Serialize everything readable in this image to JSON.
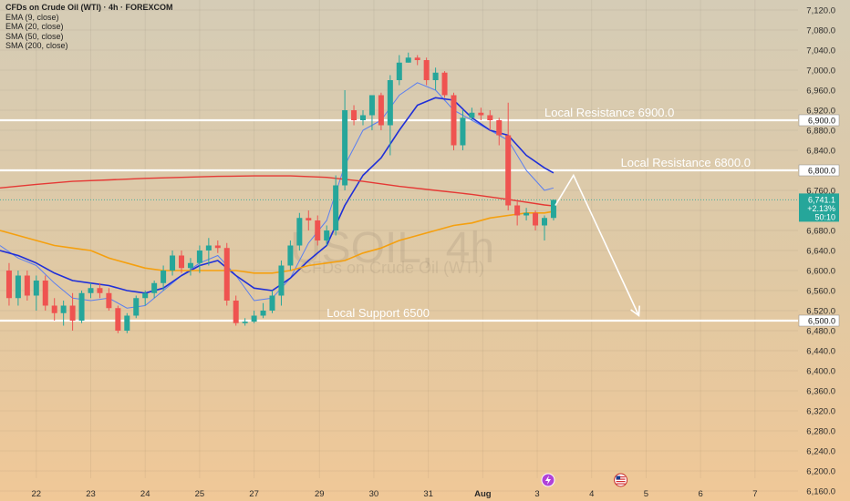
{
  "header": {
    "title": "CFDs on Crude Oil (WTI) · 4h · FOREXCOM",
    "indicators": [
      "EMA (9, close)",
      "EMA (20, close)",
      "SMA (50, close)",
      "SMA (200, close)"
    ]
  },
  "watermark": {
    "symbol": "USOIL, 4h",
    "name": "CFDs on Crude Oil (WTI)"
  },
  "price_tag": {
    "price": "6,741.1",
    "change": "+2.13%",
    "countdown": "50:10"
  },
  "colors": {
    "up": "#26a69a",
    "down": "#ef5350",
    "ema9": "#5b7ff0",
    "ema20": "#1f2fd8",
    "sma50": "#f5a00f",
    "sma200": "#e53935",
    "level": "#ffffff",
    "tag": "#26a69a"
  },
  "chart_data": {
    "type": "candlestick",
    "title": "CFDs on Crude Oil (WTI) · 4h · FOREXCOM",
    "ylim": [
      6140,
      7140
    ],
    "xlim": [
      0,
      43.2
    ],
    "y_ticks": [
      6160,
      6200,
      6240,
      6280,
      6320,
      6360,
      6400,
      6440,
      6480,
      6520,
      6560,
      6600,
      6640,
      6680,
      6720,
      6760,
      6800,
      6840,
      6880,
      6920,
      6960,
      7000,
      7040,
      7080,
      7120
    ],
    "y_tick_labels": [
      "6,160.0",
      "6,200.0",
      "6,240.0",
      "6,280.0",
      "6,320.0",
      "6,360.0",
      "6,400.0",
      "6,440.0",
      "6,480.0",
      "6,520.0",
      "6,560.0",
      "6,600.0",
      "6,640.0",
      "6,680.0",
      "6,720.0",
      "6,760.0",
      "6,800.0",
      "6,840.0",
      "6,880.0",
      "6,920.0",
      "6,960.0",
      "7,000.0",
      "7,040.0",
      "7,080.0",
      "7,120.0"
    ],
    "x_ticks": [
      {
        "label": "22",
        "x": 2
      },
      {
        "label": "23",
        "x": 5
      },
      {
        "label": "24",
        "x": 8
      },
      {
        "label": "25",
        "x": 11
      },
      {
        "label": "27",
        "x": 14
      },
      {
        "label": "29",
        "x": 17.6
      },
      {
        "label": "30",
        "x": 20.6
      },
      {
        "label": "31",
        "x": 23.6
      },
      {
        "label": "Aug",
        "x": 26.6
      },
      {
        "label": "3",
        "x": 29.6
      },
      {
        "label": "4",
        "x": 32.6
      },
      {
        "label": "5",
        "x": 35.6
      },
      {
        "label": "6",
        "x": 38.6
      },
      {
        "label": "7",
        "x": 41.6
      }
    ],
    "candles": [
      {
        "x": 0.5,
        "o": 6600,
        "h": 6615,
        "l": 6530,
        "c": 6545
      },
      {
        "x": 1.0,
        "o": 6545,
        "h": 6600,
        "l": 6530,
        "c": 6590
      },
      {
        "x": 1.5,
        "o": 6590,
        "h": 6600,
        "l": 6540,
        "c": 6550
      },
      {
        "x": 2.0,
        "o": 6550,
        "h": 6590,
        "l": 6520,
        "c": 6580
      },
      {
        "x": 2.5,
        "o": 6580,
        "h": 6590,
        "l": 6520,
        "c": 6530
      },
      {
        "x": 3.0,
        "o": 6530,
        "h": 6545,
        "l": 6500,
        "c": 6515
      },
      {
        "x": 3.5,
        "o": 6515,
        "h": 6540,
        "l": 6490,
        "c": 6530
      },
      {
        "x": 4.0,
        "o": 6530,
        "h": 6555,
        "l": 6480,
        "c": 6500
      },
      {
        "x": 4.5,
        "o": 6500,
        "h": 6560,
        "l": 6495,
        "c": 6555
      },
      {
        "x": 5.0,
        "o": 6555,
        "h": 6575,
        "l": 6545,
        "c": 6565
      },
      {
        "x": 5.5,
        "o": 6565,
        "h": 6575,
        "l": 6545,
        "c": 6555
      },
      {
        "x": 6.0,
        "o": 6555,
        "h": 6565,
        "l": 6520,
        "c": 6525
      },
      {
        "x": 6.5,
        "o": 6525,
        "h": 6530,
        "l": 6475,
        "c": 6480
      },
      {
        "x": 7.0,
        "o": 6480,
        "h": 6515,
        "l": 6475,
        "c": 6510
      },
      {
        "x": 7.5,
        "o": 6510,
        "h": 6550,
        "l": 6505,
        "c": 6545
      },
      {
        "x": 8.0,
        "o": 6545,
        "h": 6560,
        "l": 6530,
        "c": 6555
      },
      {
        "x": 8.5,
        "o": 6555,
        "h": 6580,
        "l": 6545,
        "c": 6575
      },
      {
        "x": 9.0,
        "o": 6575,
        "h": 6610,
        "l": 6560,
        "c": 6600
      },
      {
        "x": 9.5,
        "o": 6600,
        "h": 6640,
        "l": 6590,
        "c": 6630
      },
      {
        "x": 10.0,
        "o": 6630,
        "h": 6640,
        "l": 6595,
        "c": 6605
      },
      {
        "x": 10.5,
        "o": 6605,
        "h": 6625,
        "l": 6590,
        "c": 6615
      },
      {
        "x": 11.0,
        "o": 6615,
        "h": 6650,
        "l": 6595,
        "c": 6640
      },
      {
        "x": 11.5,
        "o": 6640,
        "h": 6665,
        "l": 6610,
        "c": 6650
      },
      {
        "x": 12.0,
        "o": 6650,
        "h": 6660,
        "l": 6635,
        "c": 6645
      },
      {
        "x": 12.5,
        "o": 6645,
        "h": 6655,
        "l": 6530,
        "c": 6540
      },
      {
        "x": 13.0,
        "o": 6540,
        "h": 6550,
        "l": 6490,
        "c": 6495
      },
      {
        "x": 13.5,
        "o": 6495,
        "h": 6505,
        "l": 6490,
        "c": 6498
      },
      {
        "x": 14.0,
        "o": 6498,
        "h": 6520,
        "l": 6495,
        "c": 6510
      },
      {
        "x": 14.5,
        "o": 6510,
        "h": 6535,
        "l": 6505,
        "c": 6520
      },
      {
        "x": 15.0,
        "o": 6520,
        "h": 6560,
        "l": 6515,
        "c": 6550
      },
      {
        "x": 15.5,
        "o": 6550,
        "h": 6620,
        "l": 6530,
        "c": 6610
      },
      {
        "x": 16.0,
        "o": 6610,
        "h": 6660,
        "l": 6600,
        "c": 6650
      },
      {
        "x": 16.5,
        "o": 6650,
        "h": 6715,
        "l": 6640,
        "c": 6705
      },
      {
        "x": 17.0,
        "o": 6705,
        "h": 6720,
        "l": 6680,
        "c": 6700
      },
      {
        "x": 17.5,
        "o": 6700,
        "h": 6710,
        "l": 6650,
        "c": 6660
      },
      {
        "x": 18.0,
        "o": 6660,
        "h": 6690,
        "l": 6650,
        "c": 6680
      },
      {
        "x": 18.5,
        "o": 6680,
        "h": 6790,
        "l": 6670,
        "c": 6770
      },
      {
        "x": 19.0,
        "o": 6770,
        "h": 6960,
        "l": 6760,
        "c": 6920
      },
      {
        "x": 19.5,
        "o": 6920,
        "h": 6930,
        "l": 6890,
        "c": 6900
      },
      {
        "x": 20.0,
        "o": 6900,
        "h": 6920,
        "l": 6890,
        "c": 6910
      },
      {
        "x": 20.5,
        "o": 6910,
        "h": 6950,
        "l": 6880,
        "c": 6950
      },
      {
        "x": 21.0,
        "o": 6950,
        "h": 6955,
        "l": 6880,
        "c": 6890
      },
      {
        "x": 21.5,
        "o": 6890,
        "h": 6990,
        "l": 6830,
        "c": 6980
      },
      {
        "x": 22.0,
        "o": 6980,
        "h": 7030,
        "l": 6970,
        "c": 7015
      },
      {
        "x": 22.5,
        "o": 7015,
        "h": 7035,
        "l": 7015,
        "c": 7025
      },
      {
        "x": 23.0,
        "o": 7025,
        "h": 7030,
        "l": 7010,
        "c": 7020
      },
      {
        "x": 23.5,
        "o": 7020,
        "h": 7025,
        "l": 6970,
        "c": 6980
      },
      {
        "x": 24.0,
        "o": 6980,
        "h": 7005,
        "l": 6960,
        "c": 6995
      },
      {
        "x": 24.5,
        "o": 6995,
        "h": 6998,
        "l": 6945,
        "c": 6950
      },
      {
        "x": 25.0,
        "o": 6950,
        "h": 6955,
        "l": 6840,
        "c": 6850
      },
      {
        "x": 25.5,
        "o": 6850,
        "h": 6920,
        "l": 6840,
        "c": 6905
      },
      {
        "x": 26.0,
        "o": 6905,
        "h": 6925,
        "l": 6900,
        "c": 6915
      },
      {
        "x": 26.5,
        "o": 6915,
        "h": 6925,
        "l": 6900,
        "c": 6910
      },
      {
        "x": 27.0,
        "o": 6910,
        "h": 6920,
        "l": 6880,
        "c": 6900
      },
      {
        "x": 27.5,
        "o": 6900,
        "h": 6905,
        "l": 6850,
        "c": 6870
      },
      {
        "x": 28.0,
        "o": 6870,
        "h": 6935,
        "l": 6720,
        "c": 6730
      },
      {
        "x": 28.5,
        "o": 6730,
        "h": 6740,
        "l": 6690,
        "c": 6710
      },
      {
        "x": 29.0,
        "o": 6710,
        "h": 6725,
        "l": 6700,
        "c": 6715
      },
      {
        "x": 29.5,
        "o": 6715,
        "h": 6720,
        "l": 6680,
        "c": 6690
      },
      {
        "x": 30.0,
        "o": 6690,
        "h": 6710,
        "l": 6660,
        "c": 6705
      },
      {
        "x": 30.5,
        "o": 6705,
        "h": 6742,
        "l": 6700,
        "c": 6741
      }
    ],
    "series": [
      {
        "name": "EMA (9, close)",
        "color": "#5b7ff0",
        "width": 1,
        "points": [
          [
            0,
            6650
          ],
          [
            1,
            6625
          ],
          [
            2,
            6610
          ],
          [
            3,
            6575
          ],
          [
            4,
            6545
          ],
          [
            5,
            6540
          ],
          [
            6,
            6545
          ],
          [
            7,
            6525
          ],
          [
            8,
            6530
          ],
          [
            9,
            6560
          ],
          [
            10,
            6590
          ],
          [
            11,
            6615
          ],
          [
            12,
            6630
          ],
          [
            13,
            6590
          ],
          [
            14,
            6540
          ],
          [
            15,
            6545
          ],
          [
            16,
            6585
          ],
          [
            17,
            6655
          ],
          [
            18,
            6700
          ],
          [
            19,
            6810
          ],
          [
            20,
            6880
          ],
          [
            21,
            6900
          ],
          [
            22,
            6950
          ],
          [
            23,
            6975
          ],
          [
            24,
            6960
          ],
          [
            25,
            6920
          ],
          [
            26,
            6900
          ],
          [
            27,
            6880
          ],
          [
            28,
            6860
          ],
          [
            29,
            6800
          ],
          [
            30,
            6760
          ],
          [
            30.5,
            6765
          ]
        ]
      },
      {
        "name": "EMA (20, close)",
        "color": "#1f2fd8",
        "width": 1.6,
        "points": [
          [
            0,
            6640
          ],
          [
            1,
            6630
          ],
          [
            2,
            6615
          ],
          [
            3,
            6595
          ],
          [
            4,
            6580
          ],
          [
            5,
            6575
          ],
          [
            6,
            6570
          ],
          [
            7,
            6560
          ],
          [
            8,
            6555
          ],
          [
            9,
            6565
          ],
          [
            10,
            6590
          ],
          [
            11,
            6610
          ],
          [
            12,
            6620
          ],
          [
            13,
            6590
          ],
          [
            14,
            6565
          ],
          [
            15,
            6560
          ],
          [
            16,
            6585
          ],
          [
            17,
            6620
          ],
          [
            18,
            6650
          ],
          [
            19,
            6730
          ],
          [
            20,
            6790
          ],
          [
            21,
            6825
          ],
          [
            22,
            6880
          ],
          [
            23,
            6930
          ],
          [
            24,
            6945
          ],
          [
            25,
            6940
          ],
          [
            26,
            6905
          ],
          [
            27,
            6880
          ],
          [
            28,
            6870
          ],
          [
            29,
            6830
          ],
          [
            30,
            6805
          ],
          [
            30.5,
            6795
          ]
        ]
      },
      {
        "name": "SMA (50, close)",
        "color": "#f5a00f",
        "width": 1.6,
        "points": [
          [
            0,
            6680
          ],
          [
            1,
            6670
          ],
          [
            2,
            6660
          ],
          [
            3,
            6650
          ],
          [
            4,
            6645
          ],
          [
            5,
            6640
          ],
          [
            6,
            6625
          ],
          [
            7,
            6615
          ],
          [
            8,
            6605
          ],
          [
            9,
            6600
          ],
          [
            10,
            6600
          ],
          [
            11,
            6600
          ],
          [
            12,
            6600
          ],
          [
            13,
            6600
          ],
          [
            14,
            6595
          ],
          [
            15,
            6595
          ],
          [
            16,
            6600
          ],
          [
            17,
            6610
          ],
          [
            18,
            6615
          ],
          [
            19,
            6620
          ],
          [
            20,
            6635
          ],
          [
            21,
            6645
          ],
          [
            22,
            6660
          ],
          [
            23,
            6670
          ],
          [
            24,
            6680
          ],
          [
            25,
            6690
          ],
          [
            26,
            6695
          ],
          [
            27,
            6705
          ],
          [
            28,
            6710
          ],
          [
            29,
            6715
          ],
          [
            30,
            6715
          ],
          [
            30.5,
            6718
          ]
        ]
      },
      {
        "name": "SMA (200, close)",
        "color": "#e53935",
        "width": 1.4,
        "points": [
          [
            0,
            6765
          ],
          [
            2,
            6772
          ],
          [
            4,
            6778
          ],
          [
            6,
            6781
          ],
          [
            8,
            6784
          ],
          [
            10,
            6786
          ],
          [
            12,
            6788
          ],
          [
            14,
            6789
          ],
          [
            16,
            6789
          ],
          [
            18,
            6786
          ],
          [
            20,
            6778
          ],
          [
            22,
            6768
          ],
          [
            24,
            6760
          ],
          [
            26,
            6752
          ],
          [
            28,
            6742
          ],
          [
            30,
            6731
          ],
          [
            30.5,
            6729
          ]
        ]
      }
    ],
    "levels": [
      {
        "price": 6900,
        "label": "Local Resistance 6900.0",
        "tag": "6,900.0",
        "label_x": 30
      },
      {
        "price": 6800,
        "label": "Local Resistance 6800.0",
        "tag": "6,800.0",
        "label_x": 34.2
      },
      {
        "price": 6500,
        "label": "Local Support 6500",
        "tag": "6,500.0",
        "label_x": 18
      }
    ],
    "projection": [
      [
        30.6,
        6730
      ],
      [
        31.6,
        6790
      ],
      [
        35.2,
        6510
      ]
    ],
    "reference_line": 6741.1,
    "event_markers": [
      {
        "type": "lightning",
        "x": 30.2
      },
      {
        "type": "flag-us",
        "x": 34.2
      }
    ]
  }
}
